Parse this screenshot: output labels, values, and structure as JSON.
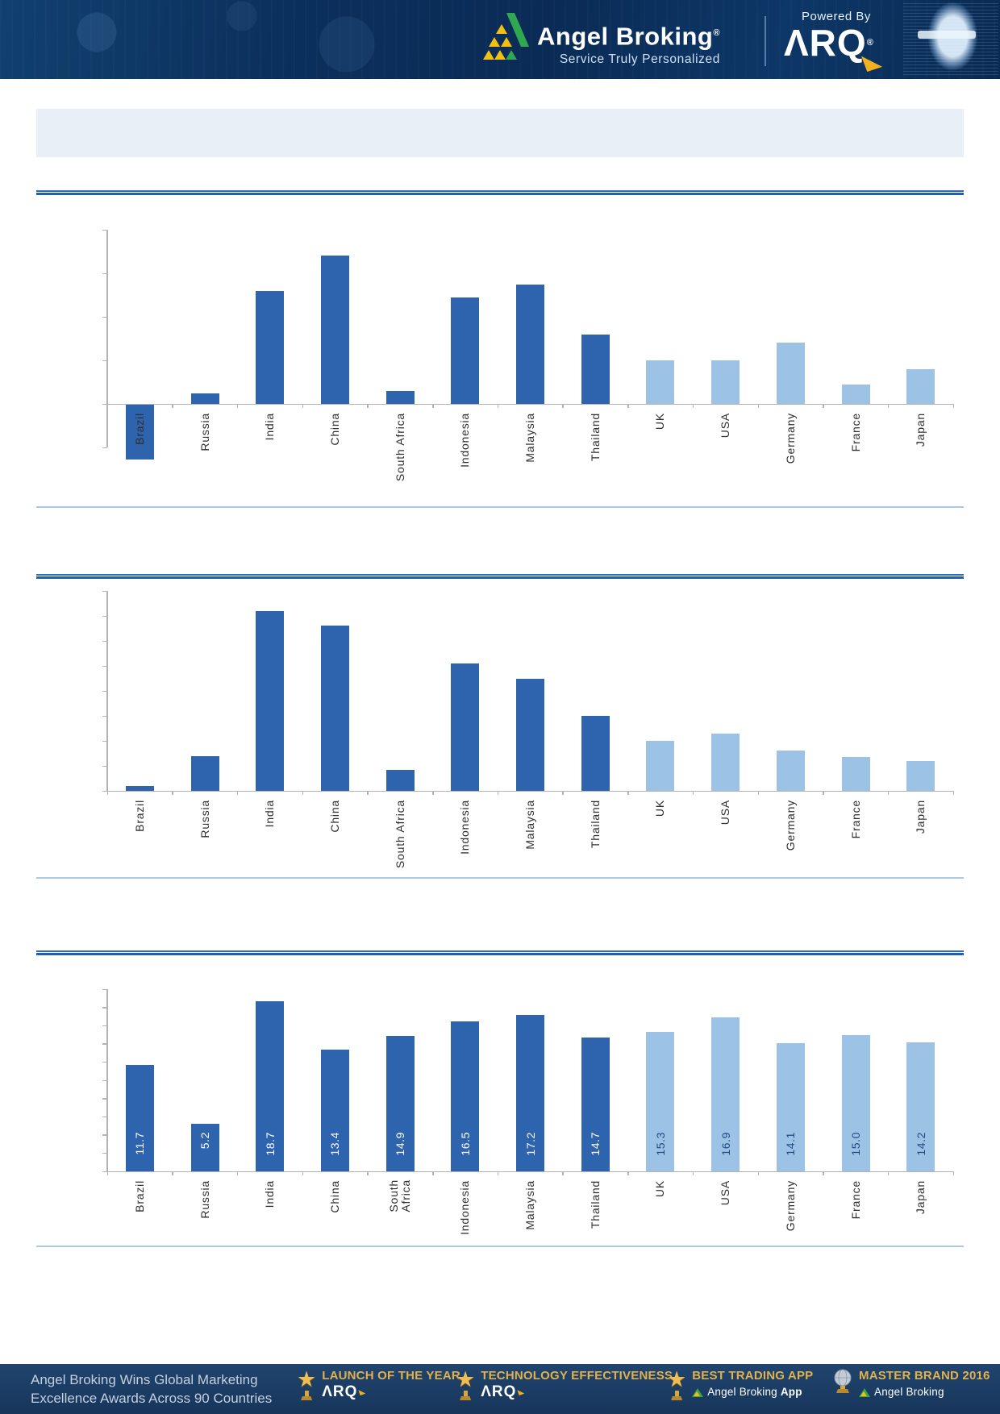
{
  "header": {
    "brand": "Angel Broking",
    "brand_reg": "®",
    "tagline": "Service Truly Personalized",
    "powered_by": "Powered By",
    "arq": "ΛRQ",
    "arq_reg": "®"
  },
  "title_box": {
    "text": ""
  },
  "colors": {
    "bar_dark": "#2e64ad",
    "bar_light": "#9cc3e6",
    "divider_dark": "#1e5fae",
    "divider_light": "#aac8e8",
    "title_box_bg": "#e9eff7",
    "header_bg": "#0b2f5c",
    "footer_bg": "#1c3a60",
    "gold": "#e3b14b",
    "axis_gray": "#b3b3b3",
    "value_label_on_dark": "#ffffff",
    "value_label_on_light": "#1f4a7d"
  },
  "chart_data": [
    {
      "type": "bar",
      "title": "",
      "categories": [
        "Brazil",
        "Russia",
        "India",
        "China",
        "South Africa",
        "Indonesia",
        "Malaysia",
        "Thailand",
        "UK",
        "USA",
        "Germany",
        "France",
        "Japan"
      ],
      "values": [
        -1.25,
        0.25,
        2.6,
        3.4,
        0.3,
        2.45,
        2.75,
        1.6,
        1.0,
        1.0,
        1.4,
        0.45,
        0.8
      ],
      "values_estimated": true,
      "y_axis_labels": false,
      "ylim": [
        -1,
        4
      ],
      "tick_step": 1,
      "grid": false,
      "legend": false,
      "data_labels": false,
      "color_groups": [
        "dark",
        "dark",
        "dark",
        "dark",
        "dark",
        "dark",
        "dark",
        "dark",
        "light",
        "light",
        "light",
        "light",
        "light"
      ]
    },
    {
      "type": "bar",
      "title": "",
      "categories": [
        "Brazil",
        "Russia",
        "India",
        "China",
        "South Africa",
        "Indonesia",
        "Malaysia",
        "Thailand",
        "UK",
        "USA",
        "Germany",
        "France",
        "Japan"
      ],
      "values": [
        0.2,
        1.4,
        7.2,
        6.6,
        0.85,
        5.1,
        4.5,
        3.0,
        2.0,
        2.3,
        1.6,
        1.35,
        1.2
      ],
      "values_estimated": true,
      "y_axis_labels": false,
      "ylim": [
        0,
        8
      ],
      "tick_step": 1,
      "grid": false,
      "legend": false,
      "data_labels": false,
      "color_groups": [
        "dark",
        "dark",
        "dark",
        "dark",
        "dark",
        "dark",
        "dark",
        "dark",
        "light",
        "light",
        "light",
        "light",
        "light"
      ]
    },
    {
      "type": "bar",
      "title": "",
      "categories": [
        "Brazil",
        "Russia",
        "India",
        "China",
        "South Africa",
        "Indonesia",
        "Malaysia",
        "Thailand",
        "UK",
        "USA",
        "Germany",
        "France",
        "Japan"
      ],
      "values": [
        11.7,
        5.2,
        18.7,
        13.4,
        14.9,
        16.5,
        17.2,
        14.7,
        15.3,
        16.9,
        14.1,
        15.0,
        14.2
      ],
      "values_estimated": false,
      "y_axis_labels": false,
      "ylim": [
        0,
        20
      ],
      "tick_step": 2,
      "grid": false,
      "legend": false,
      "data_labels": true,
      "label_format": "one_decimal",
      "wrap_south_africa": true,
      "color_groups": [
        "dark",
        "dark",
        "dark",
        "dark",
        "dark",
        "dark",
        "dark",
        "dark",
        "light",
        "light",
        "light",
        "light",
        "light"
      ]
    }
  ],
  "footer": {
    "line1": "Angel Broking Wins Global Marketing",
    "line2": "Excellence Awards Across 90 Countries",
    "badges": [
      {
        "icon": "star-trophy",
        "title": "LAUNCH OF THE YEAR",
        "sub": "ΛRQ",
        "sub_style": "arq"
      },
      {
        "icon": "star-trophy",
        "title": "TECHNOLOGY EFFECTIVENESS",
        "sub": "ΛRQ",
        "sub_style": "arq"
      },
      {
        "icon": "star-trophy",
        "title": "BEST TRADING APP",
        "sub": "Angel Broking App",
        "sub_style": "angel"
      },
      {
        "icon": "globe-trophy",
        "title": "MASTER BRAND 2016",
        "sub": "Angel Broking",
        "sub_style": "angel"
      }
    ]
  }
}
